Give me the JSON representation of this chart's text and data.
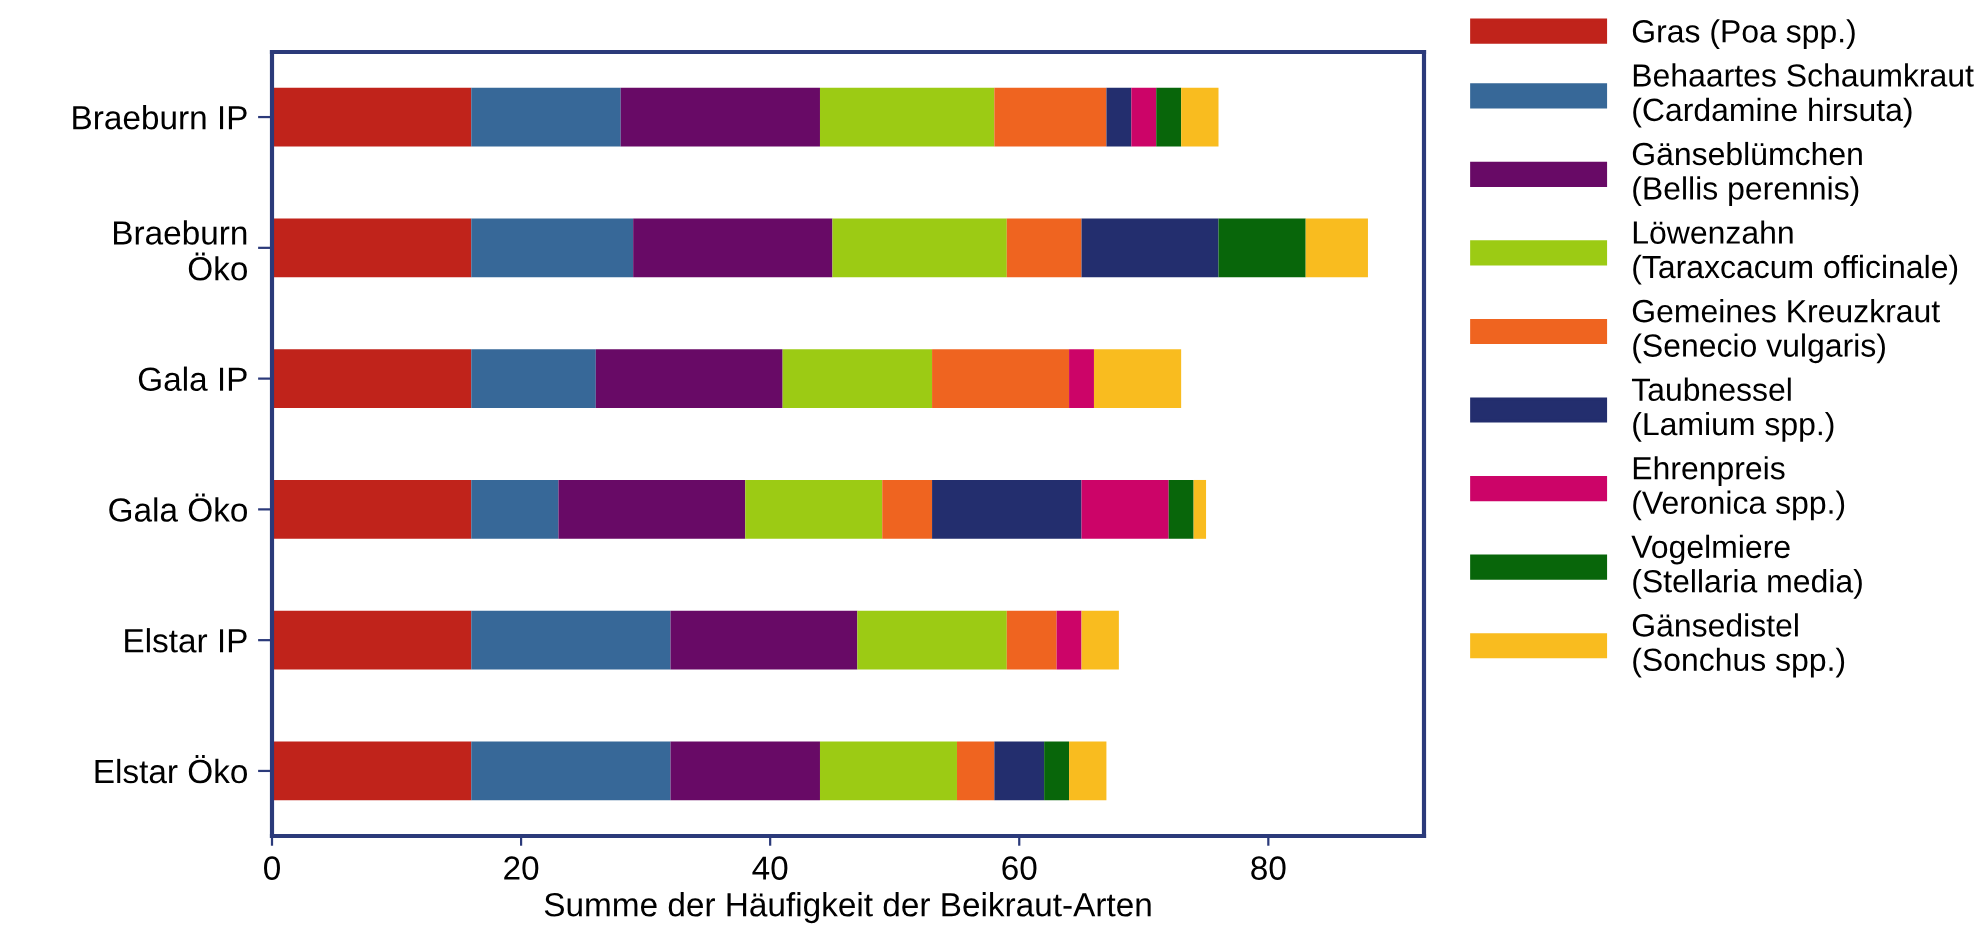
{
  "chart_data": {
    "type": "bar",
    "orientation": "horizontal",
    "stacked": true,
    "xlabel": "Summe der Häufigkeit der Beikraut-Arten",
    "categories": [
      "Braeburn IP",
      "Braeburn\nÖko",
      "Gala IP",
      "Gala Öko",
      "Elstar IP",
      "Elstar Öko"
    ],
    "xlim": [
      0,
      92.5
    ],
    "xticks": [
      0,
      20,
      40,
      60,
      80
    ],
    "grid": false,
    "legend": "right",
    "series": [
      {
        "name": "Gras (Poa spp.)",
        "color": "#c0231b",
        "values": [
          16,
          16,
          16,
          16,
          16,
          16
        ]
      },
      {
        "name": "Behaartes Schaumkraut\n(Cardamine hirsuta)",
        "color": "#376898",
        "values": [
          12,
          13,
          10,
          7,
          16,
          16
        ]
      },
      {
        "name": "Gänseblümchen\n(Bellis perennis)",
        "color": "#680a66",
        "values": [
          16,
          16,
          15,
          15,
          15,
          12
        ]
      },
      {
        "name": "Löwenzahn\n(Taraxcacum officinale)",
        "color": "#9ccb14",
        "values": [
          14,
          14,
          12,
          11,
          12,
          11
        ]
      },
      {
        "name": "Gemeines Kreuzkraut\n(Senecio vulgaris)",
        "color": "#ef6420",
        "values": [
          9,
          6,
          11,
          4,
          4,
          3
        ]
      },
      {
        "name": "Taubnessel\n(Lamium spp.)",
        "color": "#232e6e",
        "values": [
          2,
          11,
          0,
          12,
          0,
          4
        ]
      },
      {
        "name": "Ehrenpreis\n(Veronica spp.)",
        "color": "#cc0468",
        "values": [
          2,
          0,
          2,
          7,
          2,
          0
        ]
      },
      {
        "name": "Vogelmiere\n(Stellaria media)",
        "color": "#08660a",
        "values": [
          2,
          7,
          0,
          2,
          0,
          2
        ]
      },
      {
        "name": "Gänsedistel\n(Sonchus spp.)",
        "color": "#f9bc1f",
        "values": [
          3,
          5,
          7,
          1,
          3,
          3
        ]
      }
    ]
  }
}
